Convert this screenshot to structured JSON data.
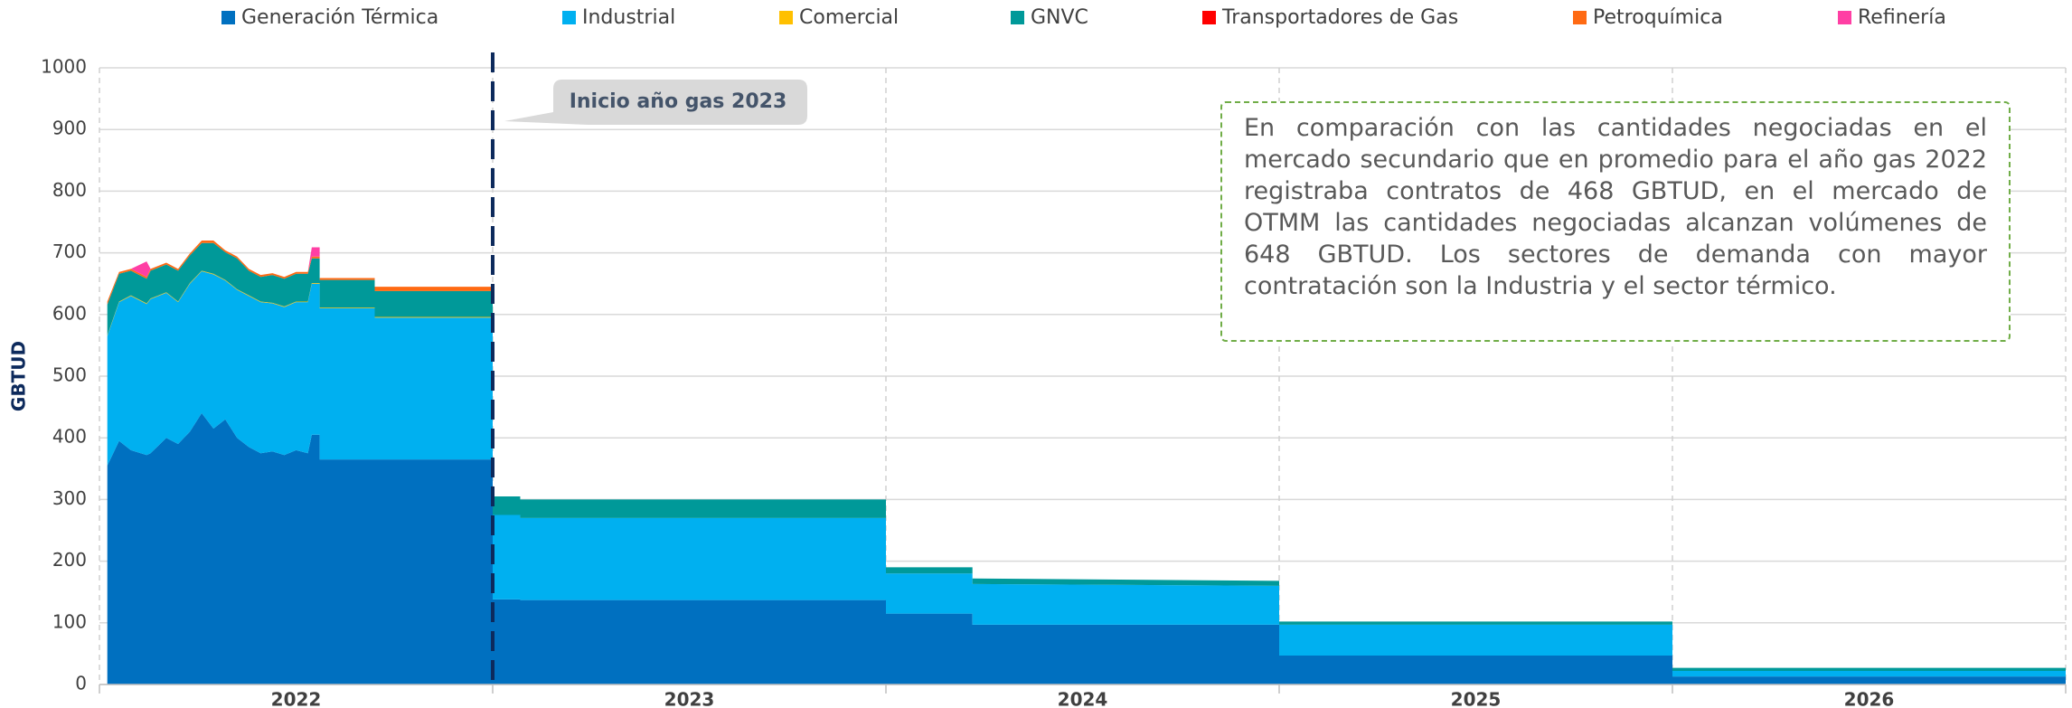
{
  "chart_data": {
    "type": "stacked_area",
    "y_label": "GBTUD",
    "categories": [
      "2022",
      "2023",
      "2024",
      "2025",
      "2026"
    ],
    "x": [
      2022.02,
      2022.05,
      2022.08,
      2022.12,
      2022.13,
      2022.17,
      2022.2,
      2022.23,
      2022.26,
      2022.29,
      2022.32,
      2022.35,
      2022.38,
      2022.41,
      2022.44,
      2022.47,
      2022.5,
      2022.53,
      2022.54,
      2022.56,
      2022.56,
      2022.7,
      2022.7,
      2023.0,
      2023.0,
      2023.07,
      2023.07,
      2024.0,
      2024.0,
      2024.22,
      2024.22,
      2025.0,
      2025.0,
      2026.0,
      2026.0,
      2027.0
    ],
    "xlim": [
      2022,
      2027
    ],
    "xticks": [
      2022,
      2023,
      2024,
      2025,
      2026,
      2027
    ],
    "ylim": [
      0,
      1000
    ],
    "yticks": [
      0,
      100,
      200,
      300,
      400,
      500,
      600,
      700,
      800,
      900,
      1000
    ],
    "grid": true,
    "series": [
      {
        "name": "Generación Térmica",
        "color": "#0070c0",
        "values": [
          355,
          395,
          380,
          372,
          375,
          400,
          390,
          410,
          440,
          415,
          430,
          400,
          385,
          375,
          378,
          372,
          380,
          375,
          405,
          405,
          365,
          365,
          365,
          365,
          138,
          138,
          137,
          137,
          115,
          115,
          97,
          97,
          47,
          47,
          13,
          13
        ]
      },
      {
        "name": "Industrial",
        "color": "#00b0f0",
        "values": [
          210,
          225,
          250,
          245,
          250,
          235,
          230,
          240,
          230,
          250,
          225,
          240,
          245,
          245,
          240,
          240,
          240,
          245,
          245,
          245,
          245,
          245,
          230,
          230,
          137,
          137,
          133,
          133,
          65,
          65,
          66,
          63,
          50,
          50,
          9,
          9
        ]
      },
      {
        "name": "Comercial",
        "color": "#ffc000",
        "values": [
          1,
          1,
          1,
          1,
          1,
          1,
          1,
          1,
          1,
          1,
          1,
          1,
          1,
          1,
          1,
          1,
          1,
          1,
          1,
          1,
          1,
          1,
          1,
          1,
          0,
          0,
          0,
          0,
          0,
          0,
          0,
          0,
          0,
          0,
          0,
          0
        ]
      },
      {
        "name": "GNVC",
        "color": "#009999",
        "values": [
          50,
          45,
          40,
          40,
          45,
          45,
          50,
          45,
          45,
          50,
          45,
          50,
          40,
          40,
          45,
          45,
          45,
          45,
          40,
          40,
          45,
          45,
          42,
          42,
          30,
          30,
          30,
          30,
          10,
          10,
          9,
          8,
          5,
          5,
          5,
          5
        ]
      },
      {
        "name": "Transportadores de Gas",
        "color": "#ff0000",
        "values": [
          0,
          0,
          0,
          0,
          0,
          0,
          0,
          0,
          0,
          0,
          0,
          0,
          0,
          0,
          0,
          0,
          0,
          0,
          0,
          0,
          0,
          0,
          0,
          0,
          0,
          0,
          0,
          0,
          0,
          0,
          0,
          0,
          0,
          0,
          0,
          0
        ]
      },
      {
        "name": "Petroquímica",
        "color": "#ff6a13",
        "values": [
          5,
          3,
          3,
          3,
          3,
          3,
          3,
          3,
          4,
          4,
          3,
          3,
          3,
          3,
          3,
          3,
          3,
          3,
          3,
          3,
          3,
          3,
          7,
          7,
          0,
          0,
          0,
          0,
          0,
          0,
          0,
          0,
          0,
          0,
          0,
          0
        ]
      },
      {
        "name": "Refinería",
        "color": "#ff3fa4",
        "values": [
          0,
          0,
          0,
          25,
          0,
          0,
          0,
          0,
          0,
          0,
          0,
          0,
          0,
          0,
          0,
          0,
          0,
          0,
          15,
          15,
          0,
          0,
          0,
          0,
          0,
          0,
          0,
          0,
          0,
          0,
          0,
          0,
          0,
          0,
          0,
          0
        ]
      }
    ],
    "vline": {
      "x": 2023,
      "label": "Inicio año gas 2023",
      "color": "#0d2a5c"
    },
    "note": "En comparación con las cantidades negociadas en el mercado secundario que en promedio para el año gas 2022 registraba contratos de 468 GBTUD, en el mercado de OTMM las cantidades negociadas alcanzan volúmenes de 648 GBTUD. Los sectores de demanda con mayor contratación son la Industria y el sector térmico."
  }
}
